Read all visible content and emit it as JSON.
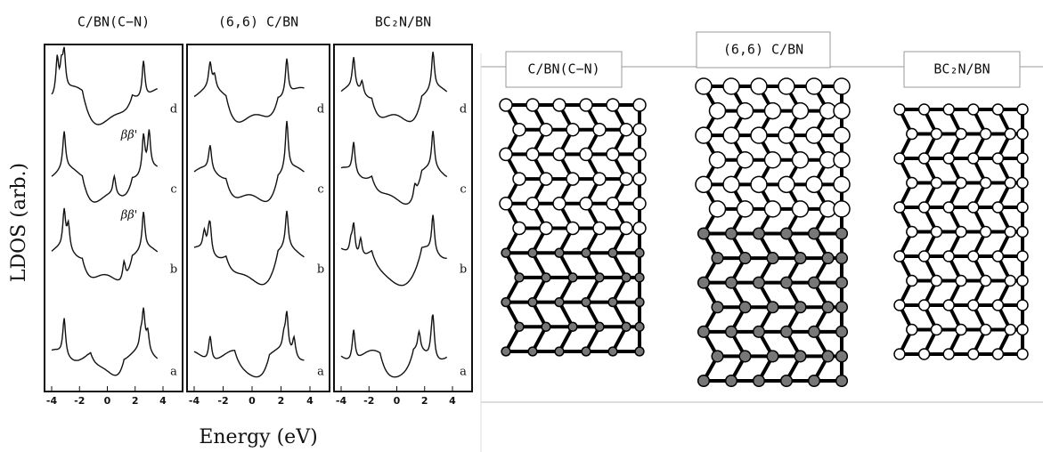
{
  "figure": {
    "ylabel": "LDOS (arb.)",
    "xlabel": "Energy (eV)",
    "panels": [
      {
        "title": "C/BN(C−N)",
        "xticks": [
          "-4",
          "-2",
          "0",
          "2",
          "4"
        ],
        "curve_labels": [
          "d",
          "c",
          "b",
          "a"
        ],
        "annotations": [
          "ββ'",
          "ββ'"
        ]
      },
      {
        "title": "(6,6) C/BN",
        "xticks": [
          "-4",
          "-2",
          "0",
          "2",
          "4"
        ],
        "curve_labels": [
          "d",
          "c",
          "b",
          "a"
        ]
      },
      {
        "title": "BC₂N/BN",
        "xticks": [
          "-4",
          "-2",
          "0",
          "2",
          "4"
        ],
        "curve_labels": [
          "d",
          "c",
          "b",
          "a"
        ]
      }
    ],
    "structures": [
      {
        "label": "C/BN(C−N)"
      },
      {
        "label": "(6,6) C/BN"
      },
      {
        "label": "BC₂N/BN"
      }
    ]
  }
}
